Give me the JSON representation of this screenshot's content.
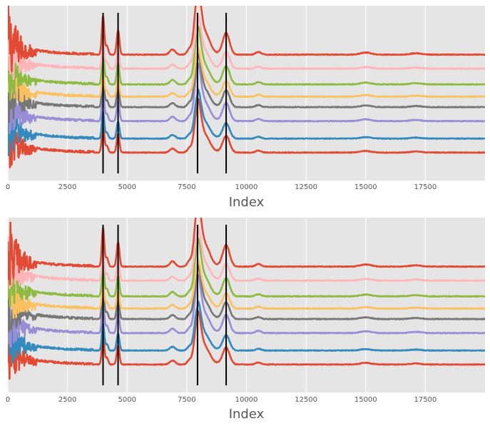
{
  "chart_data": [
    {
      "type": "line",
      "xlabel": "Index",
      "xlim": [
        0,
        20000
      ],
      "xticks": [
        0,
        2500,
        5000,
        7500,
        10000,
        12500,
        15000,
        17500
      ],
      "xtick_labels": [
        "0",
        "2500",
        "5000",
        "7500",
        "10000",
        "12500",
        "15000",
        "17500"
      ],
      "grid": true,
      "style": "ggplot",
      "vlines": [
        3990,
        4620,
        7950,
        9150
      ],
      "series": [
        {
          "color": "#E24A33",
          "baseline": 0.72
        },
        {
          "color": "#FFB5B8",
          "baseline": 0.64
        },
        {
          "color": "#8EBA42",
          "baseline": 0.55
        },
        {
          "color": "#FBC15E",
          "baseline": 0.48
        },
        {
          "color": "#777777",
          "baseline": 0.42
        },
        {
          "color": "#988ED5",
          "baseline": 0.34
        },
        {
          "color": "#348ABD",
          "baseline": 0.24
        },
        {
          "color": "#E24A33",
          "baseline": 0.16
        }
      ]
    },
    {
      "type": "line",
      "xlabel": "Index",
      "xlim": [
        0,
        20000
      ],
      "xticks": [
        0,
        2500,
        5000,
        7500,
        10000,
        12500,
        15000,
        17500
      ],
      "xtick_labels": [
        "0",
        "2500",
        "5000",
        "7500",
        "10000",
        "12500",
        "15000",
        "17500"
      ],
      "grid": true,
      "style": "ggplot",
      "vlines": [
        3990,
        4620,
        7950,
        9150
      ],
      "series": [
        {
          "color": "#E24A33",
          "baseline": 0.72
        },
        {
          "color": "#FFB5B8",
          "baseline": 0.64
        },
        {
          "color": "#8EBA42",
          "baseline": 0.55
        },
        {
          "color": "#FBC15E",
          "baseline": 0.48
        },
        {
          "color": "#777777",
          "baseline": 0.42
        },
        {
          "color": "#988ED5",
          "baseline": 0.34
        },
        {
          "color": "#348ABD",
          "baseline": 0.24
        },
        {
          "color": "#E24A33",
          "baseline": 0.16
        }
      ]
    }
  ]
}
